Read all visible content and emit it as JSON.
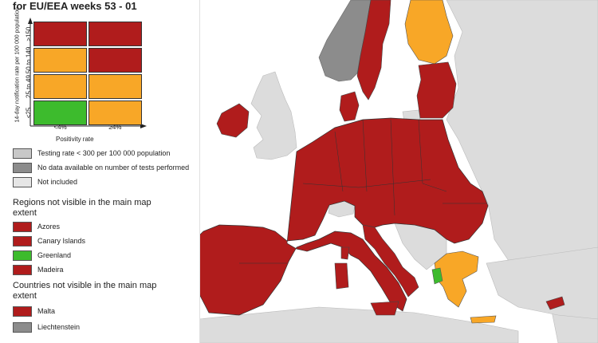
{
  "title": "for EU/EEA weeks 53 - 01",
  "colors": {
    "red": "#b01c1c",
    "orange": "#f8a727",
    "green": "#3dbb2d",
    "light_grey": "#c8c8c8",
    "dark_grey": "#8c8c8c",
    "very_light_grey": "#e6e6e6",
    "sea": "#ffffff"
  },
  "matrix": {
    "y_axis_label": "14-day notification rate per 100 000 population",
    "x_axis_label": "Positivity rate",
    "rows": [
      "≥150",
      "50 to 149",
      "25 to 49",
      "<25"
    ],
    "cols": [
      "<4%",
      "≥4%"
    ],
    "cells": [
      [
        "red",
        "red"
      ],
      [
        "orange",
        "red"
      ],
      [
        "orange",
        "orange"
      ],
      [
        "green",
        "orange"
      ]
    ]
  },
  "grey_legend": [
    {
      "label": "Testing rate < 300 per 100 000 population",
      "color": "light_grey"
    },
    {
      "label": "No data available on number of tests performed",
      "color": "dark_grey"
    },
    {
      "label": "Not included",
      "color": "very_light_grey"
    }
  ],
  "regions_heading": "Regions not visible in the main map extent",
  "regions": [
    {
      "label": "Azores",
      "color": "red"
    },
    {
      "label": "Canary Islands",
      "color": "red"
    },
    {
      "label": "Greenland",
      "color": "green"
    },
    {
      "label": "Madeira",
      "color": "red"
    }
  ],
  "countries_heading": "Countries not visible in the main map extent",
  "countries": [
    {
      "label": "Malta",
      "color": "red"
    },
    {
      "label": "Liechtenstein",
      "color": "dark_grey"
    }
  ]
}
